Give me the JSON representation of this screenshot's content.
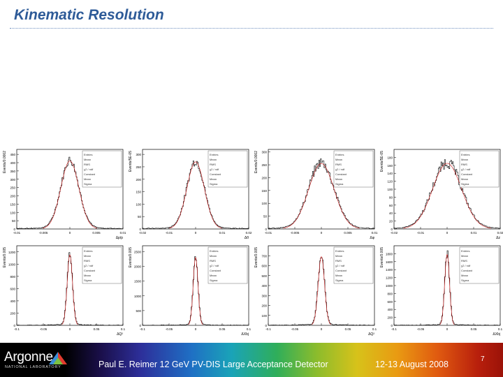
{
  "slide": {
    "title": "Kinematic Resolution"
  },
  "footer": {
    "logo_text": "Argonne",
    "logo_subtext": "NATIONAL LABORATORY",
    "presenter": "Paul E. Reimer 12 GeV PV-DIS Large Acceptance Detector",
    "date": "12-13 August 2008",
    "page": "7"
  },
  "colors": {
    "title": "#2e5b98",
    "histogram": "#000000",
    "fit": "#cc1111"
  },
  "chart_data": [
    {
      "type": "histogram",
      "ylabel": "Events/0.0002",
      "xlabel": "Δp/p",
      "xlim": [
        -0.01,
        0.01
      ],
      "ylim": [
        0,
        480
      ],
      "xticks": [
        "-0.01",
        "-0.005",
        "0",
        "0.005",
        "0.01"
      ],
      "yticks": [
        "0",
        "50",
        "100",
        "150",
        "200",
        "250",
        "300",
        "350",
        "400",
        "450"
      ],
      "peak": 410,
      "sigma": 0.0017,
      "noise": 0.06,
      "stats": [
        "Entries",
        "Mean",
        "RMS",
        "χ2 / ndf",
        "Constant",
        "Mean",
        "Sigma"
      ]
    },
    {
      "type": "histogram",
      "ylabel": "Events/5E-05",
      "xlabel": "Δθ",
      "xlim": [
        -0.02,
        0.02
      ],
      "ylim": [
        0,
        320
      ],
      "xticks": [
        "-0.02",
        "-0.01",
        "0",
        "0.01",
        "0.02"
      ],
      "yticks": [
        "0",
        "50",
        "100",
        "150",
        "200",
        "250",
        "300"
      ],
      "peak": 270,
      "sigma": 0.0033,
      "noise": 0.07,
      "stats": [
        "Entries",
        "Mean",
        "RMS",
        "χ2 / ndf",
        "Constant",
        "Mean",
        "Sigma"
      ]
    },
    {
      "type": "histogram",
      "ylabel": "Events/0.0002",
      "xlabel": "Δφ",
      "xlim": [
        -0.01,
        0.01
      ],
      "ylim": [
        0,
        310
      ],
      "xticks": [
        "-0.01",
        "-0.005",
        "0",
        "0.005",
        "0.01"
      ],
      "yticks": [
        "0",
        "50",
        "100",
        "150",
        "200",
        "250",
        "300"
      ],
      "peak": 255,
      "sigma": 0.0024,
      "noise": 0.08,
      "stats": [
        "Entries",
        "Mean",
        "RMS",
        "χ2 / ndf",
        "Constant",
        "Mean",
        "Sigma"
      ]
    },
    {
      "type": "histogram",
      "ylabel": "Events/5E-05",
      "xlabel": "Δz",
      "xlim": [
        -0.02,
        0.02
      ],
      "ylim": [
        0,
        200
      ],
      "xticks": [
        "-0.02",
        "-0.01",
        "0",
        "0.01",
        "0.02"
      ],
      "yticks": [
        "0",
        "20",
        "40",
        "60",
        "80",
        "100",
        "120",
        "140",
        "160",
        "180"
      ],
      "peak": 165,
      "sigma": 0.0055,
      "noise": 0.09,
      "stats": [
        "Entries",
        "Mean",
        "RMS",
        "χ2 / ndf",
        "Constant",
        "Mean",
        "Sigma"
      ]
    },
    {
      "type": "histogram",
      "ylabel": "Events/0.005",
      "xlabel": "ΔQ²",
      "xlim": [
        -0.1,
        0.1
      ],
      "ylim": [
        0,
        1300
      ],
      "xticks": [
        "-0.1",
        "-0.05",
        "0",
        "0.05",
        "0.1"
      ],
      "yticks": [
        "0",
        "200",
        "400",
        "600",
        "800",
        "1000",
        "1200"
      ],
      "peak": 1150,
      "sigma": 0.005,
      "noise": 0.05,
      "stats": [
        "Entries",
        "Mean",
        "RMS",
        "χ2 / ndf",
        "Constant",
        "Mean",
        "Sigma"
      ]
    },
    {
      "type": "histogram",
      "ylabel": "Events/0.005",
      "xlabel": "ΔXbj",
      "xlim": [
        -0.1,
        0.1
      ],
      "ylim": [
        0,
        2700
      ],
      "xticks": [
        "-0.1",
        "-0.05",
        "0",
        "0.05",
        "0.1"
      ],
      "yticks": [
        "0",
        "500",
        "1000",
        "1500",
        "2000",
        "2500"
      ],
      "peak": 2300,
      "sigma": 0.0045,
      "noise": 0.05,
      "stats": [
        "Entries",
        "Mean",
        "RMS",
        "χ2 / ndf",
        "Constant",
        "Mean",
        "Sigma"
      ]
    },
    {
      "type": "histogram",
      "ylabel": "Events/0.005",
      "xlabel": "ΔQ²",
      "xlim": [
        -0.1,
        0.1
      ],
      "ylim": [
        0,
        800
      ],
      "xticks": [
        "-0.1",
        "-0.05",
        "0",
        "0.05",
        "0.1"
      ],
      "yticks": [
        "0",
        "100",
        "200",
        "300",
        "400",
        "500",
        "600",
        "700"
      ],
      "peak": 690,
      "sigma": 0.006,
      "noise": 0.06,
      "stats": [
        "Entries",
        "Mean",
        "RMS",
        "χ2 / ndf",
        "Constant",
        "Mean",
        "Sigma"
      ]
    },
    {
      "type": "histogram",
      "ylabel": "Events/0.005",
      "xlabel": "ΔXbj",
      "xlim": [
        -0.1,
        0.1
      ],
      "ylim": [
        0,
        2000
      ],
      "xticks": [
        "-0.1",
        "-0.05",
        "0",
        "0.05",
        "0.1"
      ],
      "yticks": [
        "0",
        "200",
        "400",
        "600",
        "800",
        "1000",
        "1200",
        "1400",
        "1600",
        "1800"
      ],
      "peak": 1780,
      "sigma": 0.0045,
      "noise": 0.05,
      "stats": [
        "Entries",
        "Mean",
        "RMS",
        "χ2 / ndf",
        "Constant",
        "Mean",
        "Sigma"
      ]
    }
  ]
}
